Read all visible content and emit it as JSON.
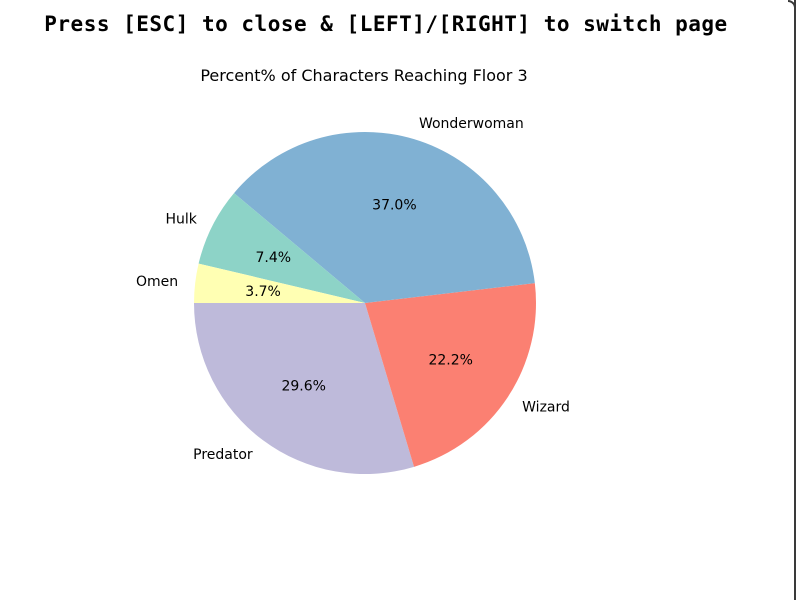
{
  "overlay": {
    "instructions": "Press [ESC] to close & [LEFT]/[RIGHT] to switch page"
  },
  "chart_data": {
    "type": "pie",
    "title": "Percent% of Characters Reaching Floor 3",
    "start_angle_deg": 180,
    "direction": "counterclockwise",
    "slices": [
      {
        "label": "Predator",
        "value": 29.6,
        "pct_label": "29.6%",
        "color": "#bebada"
      },
      {
        "label": "Wizard",
        "value": 22.2,
        "pct_label": "22.2%",
        "color": "#fb8072"
      },
      {
        "label": "Wonderwoman",
        "value": 37.0,
        "pct_label": "37.0%",
        "color": "#80b1d3"
      },
      {
        "label": "Hulk",
        "value": 7.4,
        "pct_label": "7.4%",
        "color": "#8dd3c7"
      },
      {
        "label": "Omen",
        "value": 3.7,
        "pct_label": "3.7%",
        "color": "#ffffb3"
      }
    ]
  }
}
